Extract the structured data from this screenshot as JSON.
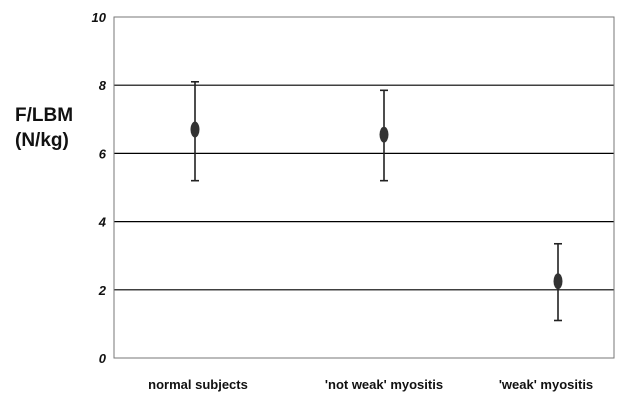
{
  "chart_data": {
    "type": "scatter",
    "title": "",
    "xlabel": "",
    "ylabel_lines": [
      "F/LBM",
      "(N/kg)"
    ],
    "categories": [
      "normal subjects",
      "'not weak' myositis",
      "'weak' myositis"
    ],
    "values": [
      6.7,
      6.55,
      2.25
    ],
    "error_bars": [
      {
        "low": 5.2,
        "high": 8.1
      },
      {
        "low": 5.2,
        "high": 7.85
      },
      {
        "low": 1.1,
        "high": 3.35
      }
    ],
    "ylim": [
      0,
      10
    ],
    "y_ticks": [
      "0",
      "2",
      "4",
      "6",
      "8",
      "10"
    ],
    "grid": "horizontal",
    "legend": "none",
    "colors": {
      "marker": "#333333",
      "errorbar": "#222222",
      "grid": "#000000",
      "frame": "#777777"
    }
  }
}
